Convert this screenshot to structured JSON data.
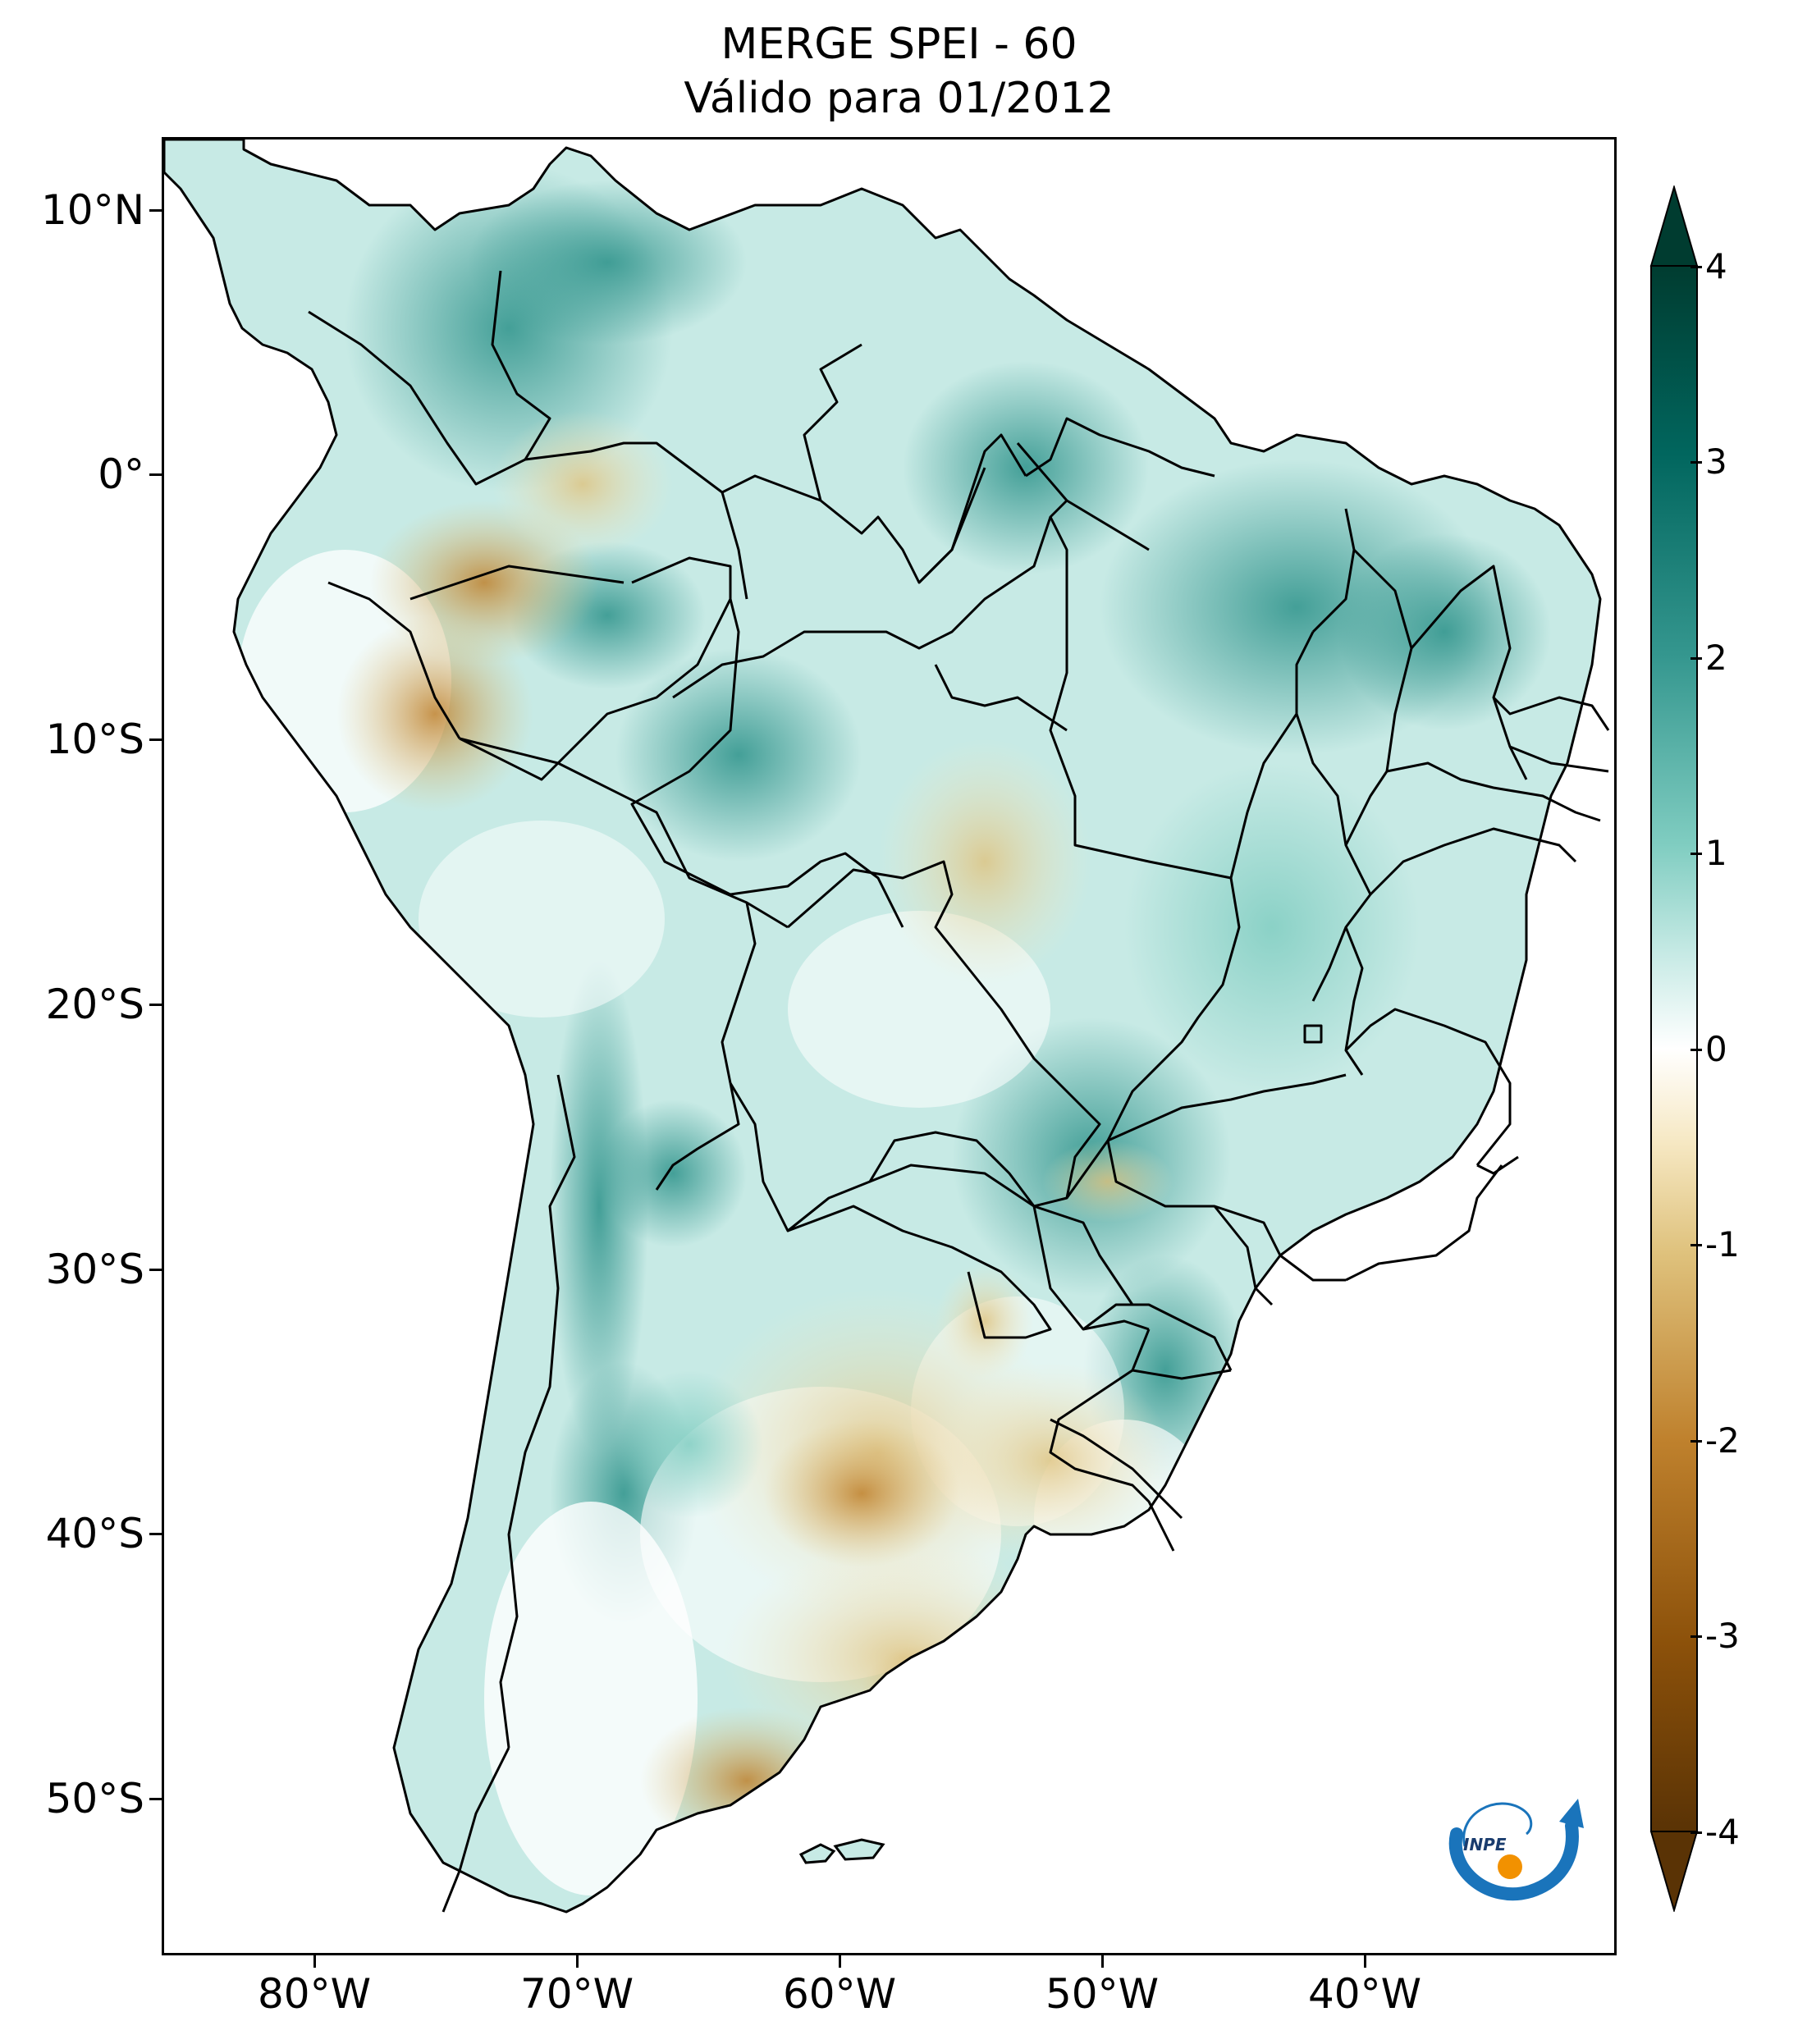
{
  "title": {
    "line1": "MERGE   SPEI - 60",
    "line2": "Válido para 01/2012"
  },
  "map": {
    "latitude_labels": [
      "10°N",
      "0°",
      "10°S",
      "20°S",
      "30°S",
      "40°S",
      "50°S"
    ],
    "longitude_labels": [
      "80°W",
      "70°W",
      "60°W",
      "50°W",
      "40°W"
    ],
    "palette_dry": "#8c510a",
    "palette_wet": "#01665e"
  },
  "colorbar": {
    "tick_labels": [
      "4",
      "3",
      "2",
      "1",
      "0",
      "-1",
      "-2",
      "-3",
      "-4"
    ],
    "range": [
      -4,
      4
    ],
    "extend": "both",
    "colormap": "BrBG",
    "color_stops": [
      "#5a3305",
      "#8c510a",
      "#bf812d",
      "#dfc27d",
      "#f6e8c3",
      "#ffffff",
      "#c7eae5",
      "#80cdc1",
      "#35978f",
      "#01665e",
      "#003c30"
    ]
  },
  "logo": {
    "text": "INPE",
    "colors": [
      "#1a74bb",
      "#f29100"
    ]
  }
}
